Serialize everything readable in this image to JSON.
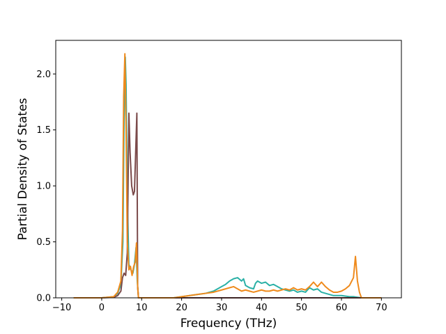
{
  "chart_data": {
    "type": "line",
    "title": "",
    "xlabel": "Frequency (THz)",
    "ylabel": "Partial Density of States",
    "xlim": [
      -11.5,
      75
    ],
    "ylim": [
      0,
      2.3
    ],
    "xticks": [
      -10,
      0,
      10,
      20,
      30,
      40,
      50,
      60,
      70
    ],
    "xtick_labels": [
      "−10",
      "0",
      "10",
      "20",
      "30",
      "40",
      "50",
      "60",
      "70"
    ],
    "yticks": [
      0.0,
      0.5,
      1.0,
      1.5,
      2.0
    ],
    "ytick_labels": [
      "0.0",
      "0.5",
      "1.0",
      "1.5",
      "2.0"
    ],
    "grid": false,
    "legend": "none",
    "series": [
      {
        "color": "#2ab0a6",
        "points": [
          [
            -7,
            0
          ],
          [
            0,
            0
          ],
          [
            3,
            0.01
          ],
          [
            4,
            0.04
          ],
          [
            4.8,
            0.12
          ],
          [
            5.3,
            0.5
          ],
          [
            5.6,
            1.6
          ],
          [
            5.9,
            2.15
          ],
          [
            6.1,
            1.9
          ],
          [
            6.4,
            0.9
          ],
          [
            6.8,
            0.3
          ],
          [
            7.3,
            0.25
          ],
          [
            7.8,
            0.22
          ],
          [
            8.2,
            0.3
          ],
          [
            8.6,
            0.45
          ],
          [
            8.9,
            0.15
          ],
          [
            9.2,
            0
          ],
          [
            18,
            0
          ],
          [
            20,
            0.01
          ],
          [
            22,
            0.02
          ],
          [
            24,
            0.03
          ],
          [
            26,
            0.04
          ],
          [
            28,
            0.06
          ],
          [
            29,
            0.08
          ],
          [
            30,
            0.1
          ],
          [
            31,
            0.12
          ],
          [
            32,
            0.15
          ],
          [
            33,
            0.17
          ],
          [
            34,
            0.18
          ],
          [
            35,
            0.15
          ],
          [
            35.5,
            0.17
          ],
          [
            36,
            0.11
          ],
          [
            37,
            0.09
          ],
          [
            38,
            0.08
          ],
          [
            38.5,
            0.13
          ],
          [
            39,
            0.15
          ],
          [
            40,
            0.13
          ],
          [
            41,
            0.14
          ],
          [
            42,
            0.11
          ],
          [
            43,
            0.12
          ],
          [
            44,
            0.1
          ],
          [
            45,
            0.08
          ],
          [
            46,
            0.07
          ],
          [
            47,
            0.06
          ],
          [
            48,
            0.07
          ],
          [
            49,
            0.05
          ],
          [
            50,
            0.06
          ],
          [
            51,
            0.05
          ],
          [
            52,
            0.09
          ],
          [
            53,
            0.07
          ],
          [
            54,
            0.08
          ],
          [
            55,
            0.05
          ],
          [
            56,
            0.04
          ],
          [
            57,
            0.03
          ],
          [
            58,
            0.02
          ],
          [
            60,
            0.02
          ],
          [
            62,
            0.01
          ],
          [
            63,
            0.01
          ],
          [
            64,
            0.005
          ],
          [
            65,
            0
          ],
          [
            70,
            0
          ]
        ]
      },
      {
        "color": "#7b4a4a",
        "points": [
          [
            -7,
            0
          ],
          [
            0,
            0
          ],
          [
            3,
            0.005
          ],
          [
            4,
            0.02
          ],
          [
            4.8,
            0.06
          ],
          [
            5.2,
            0.18
          ],
          [
            5.6,
            0.22
          ],
          [
            6,
            0.2
          ],
          [
            6.4,
            0.4
          ],
          [
            6.8,
            1.65
          ],
          [
            7.1,
            1.3
          ],
          [
            7.5,
            1.0
          ],
          [
            7.9,
            0.92
          ],
          [
            8.2,
            0.95
          ],
          [
            8.5,
            1.3
          ],
          [
            8.8,
            1.65
          ],
          [
            9,
            0.1
          ],
          [
            9.2,
            0
          ],
          [
            70,
            0
          ]
        ]
      },
      {
        "color": "#ef8a1c",
        "points": [
          [
            -7,
            0
          ],
          [
            0,
            0
          ],
          [
            3,
            0.01
          ],
          [
            4,
            0.05
          ],
          [
            4.8,
            0.15
          ],
          [
            5.2,
            0.6
          ],
          [
            5.5,
            1.8
          ],
          [
            5.8,
            2.18
          ],
          [
            6.1,
            1.5
          ],
          [
            6.4,
            0.5
          ],
          [
            6.8,
            0.25
          ],
          [
            7.2,
            0.28
          ],
          [
            7.6,
            0.2
          ],
          [
            8,
            0.28
          ],
          [
            8.4,
            0.32
          ],
          [
            8.7,
            0.49
          ],
          [
            9,
            0.1
          ],
          [
            9.2,
            0
          ],
          [
            18,
            0
          ],
          [
            20,
            0.01
          ],
          [
            22,
            0.02
          ],
          [
            24,
            0.03
          ],
          [
            26,
            0.04
          ],
          [
            28,
            0.05
          ],
          [
            30,
            0.07
          ],
          [
            31,
            0.08
          ],
          [
            32,
            0.09
          ],
          [
            33,
            0.1
          ],
          [
            34,
            0.08
          ],
          [
            35,
            0.06
          ],
          [
            36,
            0.07
          ],
          [
            37,
            0.06
          ],
          [
            38,
            0.05
          ],
          [
            39,
            0.06
          ],
          [
            40,
            0.07
          ],
          [
            41,
            0.06
          ],
          [
            42,
            0.06
          ],
          [
            43,
            0.07
          ],
          [
            44,
            0.06
          ],
          [
            45,
            0.07
          ],
          [
            46,
            0.08
          ],
          [
            47,
            0.07
          ],
          [
            48,
            0.09
          ],
          [
            49,
            0.07
          ],
          [
            50,
            0.08
          ],
          [
            51,
            0.07
          ],
          [
            52,
            0.1
          ],
          [
            53,
            0.14
          ],
          [
            54,
            0.1
          ],
          [
            55,
            0.14
          ],
          [
            56,
            0.1
          ],
          [
            57,
            0.07
          ],
          [
            58,
            0.05
          ],
          [
            59,
            0.05
          ],
          [
            60,
            0.06
          ],
          [
            61,
            0.08
          ],
          [
            62,
            0.11
          ],
          [
            63,
            0.18
          ],
          [
            63.5,
            0.37
          ],
          [
            64,
            0.15
          ],
          [
            64.5,
            0.05
          ],
          [
            65,
            0
          ],
          [
            70,
            0
          ]
        ]
      }
    ]
  }
}
